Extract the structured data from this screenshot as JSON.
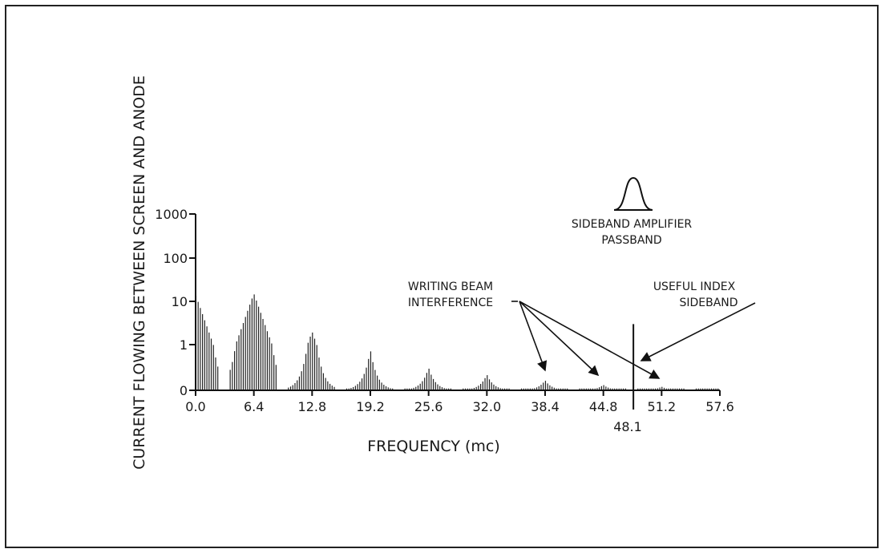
{
  "chart_data": {
    "type": "bar",
    "title": "",
    "xlabel": "FREQUENCY (mc)",
    "ylabel": "CURRENT FLOWING BETWEEN SCREEN AND ANODE",
    "x_ticks": [
      "0.0",
      "6.4",
      "12.8",
      "19.2",
      "25.6",
      "32.0",
      "38.4",
      "44.8",
      "51.2",
      "57.6"
    ],
    "y_ticks": [
      "0",
      "1",
      "10",
      "100",
      "1000"
    ],
    "xlim": [
      0.0,
      57.6
    ],
    "y_scale": "log",
    "special_line": {
      "x": 48.1,
      "label": "48.1",
      "value": 2.5
    },
    "series": [
      {
        "center": 0.0,
        "peak": 14
      },
      {
        "center": 6.4,
        "peak": 15
      },
      {
        "center": 12.8,
        "peak": 2
      },
      {
        "center": 19.2,
        "peak": 0.9
      },
      {
        "center": 25.6,
        "peak": 0.5
      },
      {
        "center": 32.0,
        "peak": 0.35
      },
      {
        "center": 38.4,
        "peak": 0.22
      },
      {
        "center": 44.8,
        "peak": 0.12
      },
      {
        "center": 51.2,
        "peak": 0.08
      },
      {
        "center": 57.6,
        "peak": 0.05
      }
    ],
    "annotations": {
      "writing_beam": [
        "WRITING BEAM",
        "INTERFERENCE"
      ],
      "useful_index": [
        "USEFUL INDEX",
        "SIDEBAND"
      ],
      "sideband_amp": [
        "SIDEBAND AMPLIFIER",
        "PASSBAND"
      ]
    }
  }
}
